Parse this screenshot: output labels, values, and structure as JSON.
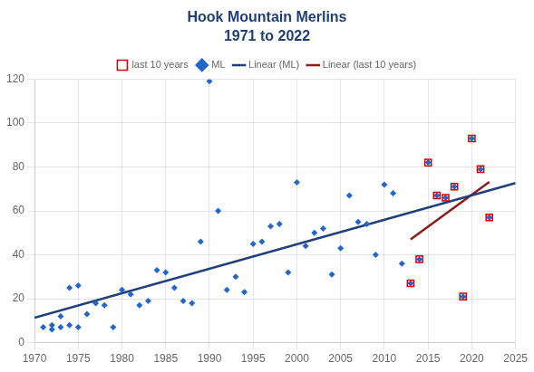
{
  "chart_data": {
    "type": "scatter",
    "title": "Hook Mountain Merlins",
    "subtitle": "1971 to 2022",
    "xlim": [
      1970,
      2025
    ],
    "ylim": [
      0,
      120
    ],
    "xticks": [
      1970,
      1975,
      1980,
      1985,
      1990,
      1995,
      2000,
      2005,
      2010,
      2015,
      2020,
      2025
    ],
    "yticks": [
      0,
      20,
      40,
      60,
      80,
      100,
      120
    ],
    "grid": true,
    "legend": "top",
    "series": [
      {
        "name": "ML",
        "type": "scatter",
        "color": "#2266CC",
        "marker": "diamond",
        "x": [
          1971,
          1972,
          1972,
          1973,
          1973,
          1974,
          1974,
          1975,
          1975,
          1976,
          1977,
          1978,
          1979,
          1980,
          1981,
          1982,
          1983,
          1984,
          1985,
          1986,
          1987,
          1988,
          1989,
          1990,
          1991,
          1992,
          1993,
          1994,
          1995,
          1996,
          1997,
          1998,
          1999,
          2000,
          2001,
          2002,
          2003,
          2004,
          2005,
          2006,
          2007,
          2008,
          2009,
          2010,
          2011,
          2012,
          2013,
          2014,
          2015,
          2016,
          2017,
          2018,
          2019,
          2020,
          2021,
          2022
        ],
        "values": [
          7,
          8,
          6,
          7,
          12,
          8,
          25,
          7,
          26,
          13,
          18,
          17,
          7,
          24,
          22,
          17,
          19,
          33,
          32,
          25,
          19,
          18,
          46,
          119,
          60,
          24,
          30,
          23,
          45,
          46,
          53,
          54,
          32,
          73,
          44,
          50,
          52,
          31,
          43,
          67,
          55,
          54,
          40,
          72,
          68,
          36,
          27,
          38,
          82,
          67,
          66,
          71,
          21,
          93,
          79,
          57
        ]
      },
      {
        "name": "last 10 years",
        "type": "scatter",
        "color": "#cc0000",
        "marker": "square",
        "x": [
          2013,
          2014,
          2015,
          2016,
          2017,
          2018,
          2019,
          2020,
          2021,
          2022
        ],
        "values": [
          27,
          38,
          82,
          67,
          66,
          71,
          21,
          93,
          79,
          57
        ]
      },
      {
        "name": "Linear (ML)",
        "type": "line",
        "color": "#1F3E7A",
        "line_style": "solid",
        "x": [
          1970,
          2025
        ],
        "values": [
          11.35,
          72.68
        ]
      },
      {
        "name": "Linear (last 10 years)",
        "type": "line",
        "color": "#8B1A1A",
        "line_style": "solid",
        "x": [
          2013,
          2022
        ],
        "values": [
          47.04,
          73.16
        ]
      }
    ]
  }
}
